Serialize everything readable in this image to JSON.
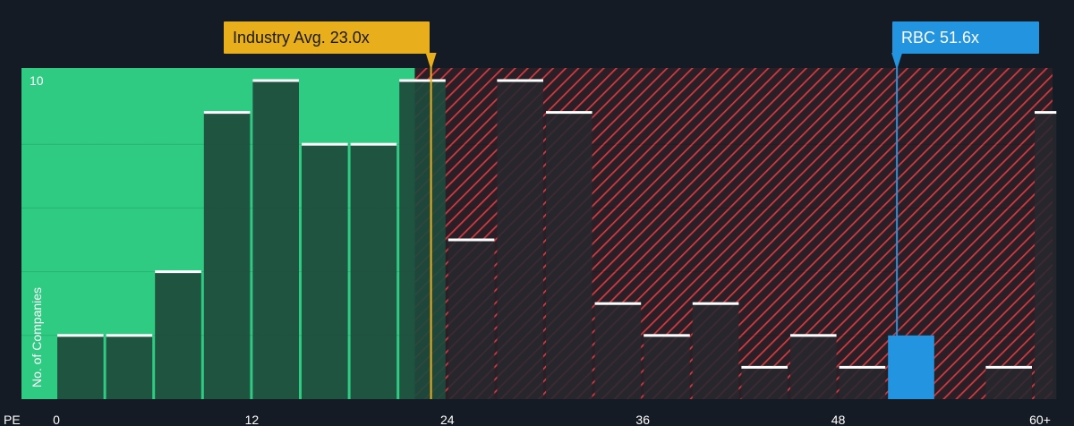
{
  "chart_data": {
    "type": "bar",
    "xlabel": "PE",
    "ylabel": "No. of Companies",
    "x_ticks": [
      "0",
      "12",
      "24",
      "36",
      "48",
      "60+"
    ],
    "y_ticks": [
      "10"
    ],
    "ylim": [
      0,
      10
    ],
    "xlim": [
      0,
      61
    ],
    "bins": [
      {
        "start": 0,
        "end": 3,
        "value": 2
      },
      {
        "start": 3,
        "end": 6,
        "value": 2
      },
      {
        "start": 6,
        "end": 9,
        "value": 4
      },
      {
        "start": 9,
        "end": 12,
        "value": 9
      },
      {
        "start": 12,
        "end": 15,
        "value": 10
      },
      {
        "start": 15,
        "end": 18,
        "value": 8
      },
      {
        "start": 18,
        "end": 21,
        "value": 8
      },
      {
        "start": 21,
        "end": 24,
        "value": 10
      },
      {
        "start": 24,
        "end": 27,
        "value": 5
      },
      {
        "start": 27,
        "end": 30,
        "value": 10
      },
      {
        "start": 30,
        "end": 33,
        "value": 9
      },
      {
        "start": 33,
        "end": 36,
        "value": 3
      },
      {
        "start": 36,
        "end": 39,
        "value": 2
      },
      {
        "start": 39,
        "end": 42,
        "value": 3
      },
      {
        "start": 42,
        "end": 45,
        "value": 1
      },
      {
        "start": 45,
        "end": 48,
        "value": 2
      },
      {
        "start": 48,
        "end": 51,
        "value": 1
      },
      {
        "start": 51,
        "end": 54,
        "value": 2,
        "highlight": true
      },
      {
        "start": 54,
        "end": 57,
        "value": 0
      },
      {
        "start": 57,
        "end": 60,
        "value": 1
      },
      {
        "start": 60,
        "end": 61.5,
        "value": 9
      }
    ],
    "fair_region_end": 22,
    "industry_avg": {
      "label": "Industry Avg. 23.0x",
      "value": 23.0
    },
    "company": {
      "label": "RBC 51.6x",
      "value": 51.6
    },
    "colors": {
      "background": "#151b24",
      "fair_zone": "#2fcb82",
      "bar_in_fair": "#1e4a3c",
      "bar_in_over": "#28282f",
      "hatch": "#d03a40",
      "highlight_bar": "#2394e0",
      "industry_callout": "#e8ae1c",
      "company_callout": "#2394e0",
      "bar_top": "#ffffff"
    }
  }
}
